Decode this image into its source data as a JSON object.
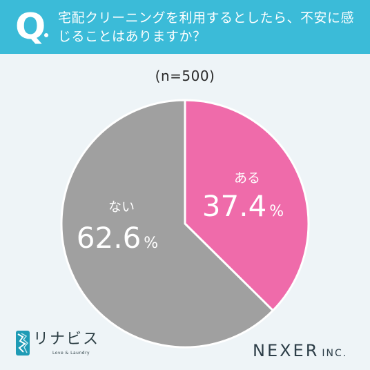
{
  "header": {
    "q_mark": "Q",
    "question": "宅配クリーニングを利用するとしたら、不安に感じることはありますか？"
  },
  "sample_label": "(n=500)",
  "colors": {
    "header_bg": "#3bbbd8",
    "background": "#eef4f7",
    "slice_yes": "#ef6baa",
    "slice_no": "#a0a0a0"
  },
  "chart_data": {
    "type": "pie",
    "title": "",
    "categories": [
      "ある",
      "ない"
    ],
    "values": [
      37.4,
      62.6
    ],
    "unit": "%",
    "labels": [
      {
        "category": "ある",
        "value": "37.4",
        "unit": "%"
      },
      {
        "category": "ない",
        "value": "62.6",
        "unit": "%"
      }
    ],
    "colors": [
      "#ef6baa",
      "#a0a0a0"
    ],
    "start": "top",
    "direction": "clockwise"
  },
  "footer": {
    "brand_name": "リナビス",
    "brand_tagline": "Love & Laundry",
    "brand_icon": "rinavis-logo-icon",
    "company": "NEXER",
    "company_suffix": "INC."
  }
}
